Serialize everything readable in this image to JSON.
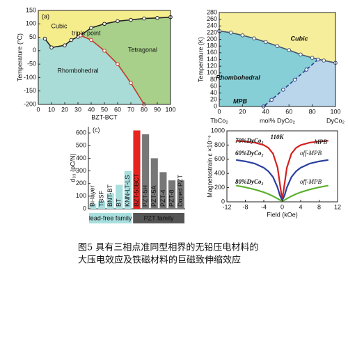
{
  "chart_data": [
    {
      "type": "phase",
      "label": "(a)",
      "x_label": "BZT-BCT",
      "y_label": "Temperature (°C)",
      "xlim": [
        0,
        100
      ],
      "ylim": [
        -200,
        150
      ],
      "xticks": [
        0,
        10,
        20,
        30,
        40,
        50,
        60,
        70,
        80,
        90,
        100
      ],
      "yticks": [
        -200,
        -150,
        -100,
        -50,
        0,
        50,
        100,
        150
      ],
      "regions": [
        {
          "name": "Cubic",
          "color": "#f5ec8c"
        },
        {
          "name": "Rhombohedral",
          "color": "#a9dcd6"
        },
        {
          "name": "Tetragonal",
          "color": "#a8d08a"
        }
      ],
      "annotations": [
        "triple point"
      ],
      "series": [
        {
          "color": "#222222",
          "style": "solid",
          "x": [
            5,
            10,
            20,
            25,
            30,
            32,
            40,
            50,
            60,
            70,
            80,
            90,
            100
          ],
          "values": [
            45,
            12,
            20,
            40,
            52,
            57,
            85,
            100,
            110,
            115,
            120,
            122,
            125
          ]
        },
        {
          "color": "#c0392b",
          "style": "solid",
          "x": [
            32,
            40,
            50,
            60,
            70,
            80
          ],
          "values": [
            57,
            40,
            0,
            -50,
            -120,
            -200
          ]
        }
      ]
    },
    {
      "type": "phase",
      "x_label": "mol% DyCo₂",
      "x_end_labels": [
        "TbCo₂",
        "DyCo₂"
      ],
      "y_label": "Temperature (K)",
      "xlim": [
        0,
        100
      ],
      "ylim": [
        0,
        280
      ],
      "xticks": [
        0,
        20,
        40,
        60,
        80,
        100
      ],
      "yticks": [
        0,
        20,
        40,
        60,
        80,
        100,
        120,
        140,
        160,
        180,
        200,
        220,
        240,
        260,
        280
      ],
      "regions": [
        {
          "name": "Cubic",
          "color": "#f6ee9a"
        },
        {
          "name": "Rhombohedral",
          "color": "#86cfd6"
        },
        {
          "name": "MPB",
          "color": "#b9d6ea"
        }
      ],
      "annotations": [],
      "series": [
        {
          "color": "#44556e",
          "style": "solid",
          "x": [
            0,
            10,
            20,
            30,
            40,
            50,
            60,
            70,
            80,
            90,
            100
          ],
          "values": [
            225,
            220,
            212,
            203,
            192,
            180,
            168,
            155,
            145,
            137,
            130
          ]
        },
        {
          "color": "#2c3e8c",
          "style": "dashed",
          "x": [
            85,
            75,
            65,
            55,
            45,
            38
          ],
          "values": [
            140,
            110,
            80,
            50,
            20,
            0
          ]
        }
      ]
    },
    {
      "type": "bar",
      "label": "(c)",
      "y_label": "d₃₃ (pC/N)",
      "ylim": [
        0,
        650
      ],
      "yticks": [
        0,
        100,
        200,
        300,
        400,
        500,
        600
      ],
      "categories": [
        "Bi-layer",
        "TBSF",
        "BNT-BT",
        "BT",
        "KNN-LT-LS",
        "BZT-50BCT",
        "PZT-5H",
        "PZT-5A",
        "PZT-4",
        "PZT-8",
        "Doped PZT"
      ],
      "values": [
        40,
        60,
        125,
        190,
        300,
        620,
        590,
        400,
        290,
        225,
        225
      ],
      "colors": [
        "#a8dede",
        "#a8dede",
        "#a8dede",
        "#a8dede",
        "#a8dede",
        "#e8231f",
        "#777777",
        "#777777",
        "#777777",
        "#777777",
        "#777777"
      ],
      "groups": [
        {
          "name": "lead-free family",
          "color": "#a8dede"
        },
        {
          "name": "PZT family",
          "color": "#555555"
        }
      ]
    },
    {
      "type": "line",
      "x_label": "Field (kOe)",
      "y_label": "Magnetostrain ε ×10⁻⁶",
      "xlim": [
        -12,
        12
      ],
      "ylim": [
        0,
        1000
      ],
      "xticks": [
        -12,
        -8,
        -4,
        0,
        4,
        8,
        12
      ],
      "yticks": [
        0,
        200,
        400,
        600,
        800,
        1000
      ],
      "annotations": [
        "110K",
        "MPB",
        "off-MPB",
        "off-MPB"
      ],
      "series": [
        {
          "name": "70%DyCo₂",
          "color": "#d42020",
          "x": [
            -10,
            -8,
            -6,
            -4,
            -3,
            -2,
            -1,
            -0.5,
            0,
            0.5,
            1,
            2,
            3,
            4,
            6,
            8,
            10
          ],
          "values": [
            860,
            850,
            835,
            800,
            760,
            680,
            480,
            250,
            30,
            250,
            480,
            680,
            760,
            800,
            835,
            850,
            860
          ]
        },
        {
          "name": "60%DyCo₂",
          "color": "#2a3f9e",
          "x": [
            -10,
            -8,
            -6,
            -4,
            -3,
            -2,
            -1,
            -0.5,
            0,
            0.5,
            1,
            2,
            3,
            4,
            6,
            8,
            10
          ],
          "values": [
            590,
            570,
            540,
            480,
            430,
            350,
            200,
            90,
            20,
            90,
            200,
            350,
            430,
            480,
            540,
            570,
            590
          ]
        },
        {
          "name": "80%DyCo₂",
          "color": "#5cb030",
          "x": [
            -10,
            -8,
            -6,
            -4,
            -3,
            -2,
            -1,
            -0.5,
            0,
            0.5,
            1,
            2,
            3,
            4,
            6,
            8,
            10
          ],
          "values": [
            230,
            205,
            175,
            135,
            110,
            80,
            45,
            25,
            10,
            25,
            45,
            80,
            110,
            135,
            175,
            205,
            230
          ]
        }
      ]
    }
  ],
  "caption": [
    "图5  具有三相点准同型相界的无铅压电材料的",
    "大压电效应及铁磁材料的巨磁致伸缩效应"
  ]
}
